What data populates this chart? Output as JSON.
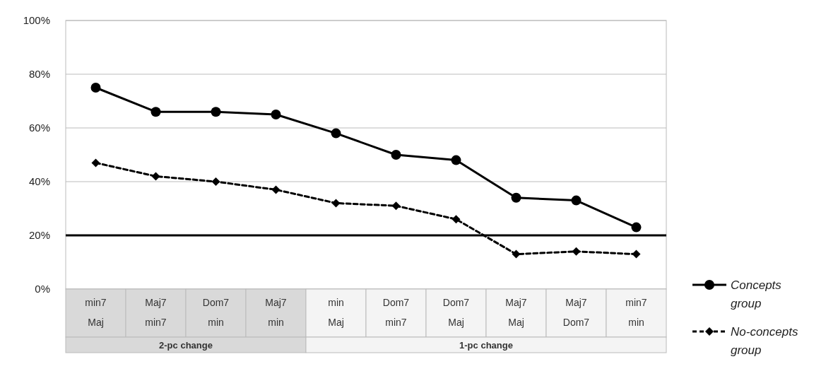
{
  "chart_data": {
    "type": "line",
    "categories": [
      "min7\nMaj",
      "Maj7\nmin7",
      "Dom7\nmin",
      "Maj7\nmin",
      "min\nMaj",
      "Dom7\nmin7",
      "Dom7\nMaj",
      "Maj7\nMaj",
      "Maj7\nDom7",
      "min7\nmin"
    ],
    "series": [
      {
        "name": "Concepts group",
        "color": "#000000",
        "marker": "circle",
        "line_style": "solid",
        "values": [
          75,
          66,
          66,
          65,
          58,
          50,
          48,
          34,
          33,
          23
        ]
      },
      {
        "name": "No-concepts group",
        "color": "#000000",
        "marker": "diamond",
        "line_style": "dashed",
        "values": [
          47,
          42,
          40,
          37,
          32,
          31,
          26,
          13,
          14,
          13
        ]
      }
    ],
    "ylim": [
      0,
      100
    ],
    "yticks": [
      {
        "value": 0,
        "label": "0%"
      },
      {
        "value": 20,
        "label": "20%"
      },
      {
        "value": 40,
        "label": "40%"
      },
      {
        "value": 60,
        "label": "60%"
      },
      {
        "value": 80,
        "label": "80%"
      },
      {
        "value": 100,
        "label": "100%"
      }
    ],
    "grid": "y",
    "legend": "right",
    "ref_lines": [
      {
        "axis": "y",
        "value": 20,
        "color": "#000000"
      }
    ],
    "annotations": [
      "2-pc change",
      "1-pc change"
    ]
  }
}
